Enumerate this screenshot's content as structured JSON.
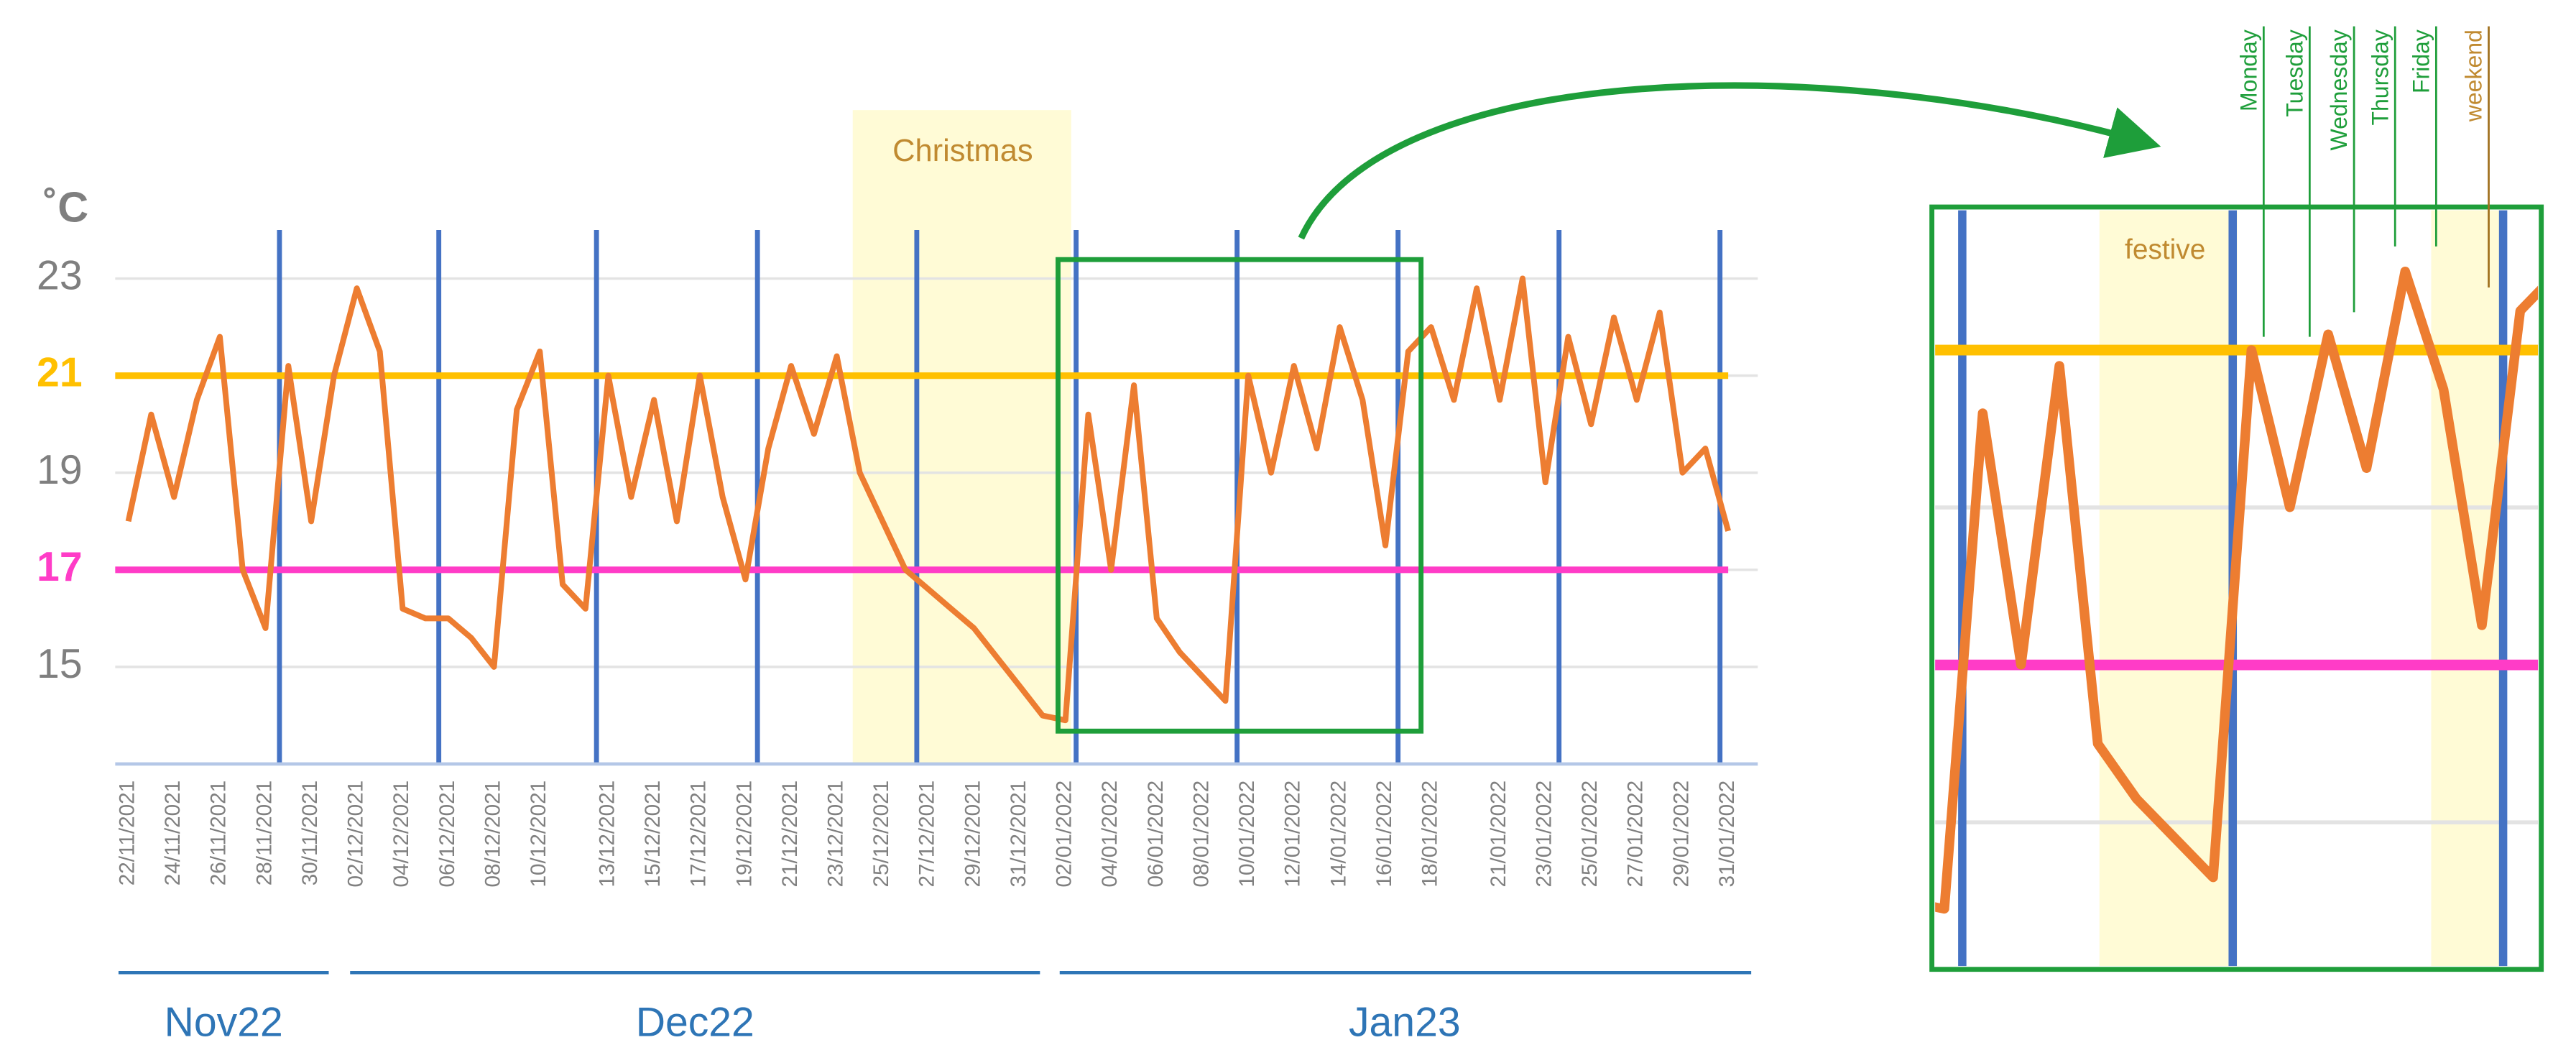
{
  "chart_data": {
    "type": "line",
    "unit": "˚C",
    "ylim": [
      13,
      24
    ],
    "yticks": [
      15,
      17,
      19,
      21,
      23
    ],
    "reference_lines": [
      {
        "value": 21,
        "color": "#ffc000"
      },
      {
        "value": 17,
        "color": "#ff3cc7"
      }
    ],
    "grid": true,
    "categories": [
      "22/11/2021",
      null,
      "24/11/2021",
      null,
      "26/11/2021",
      null,
      "28/11/2021",
      null,
      "30/11/2021",
      null,
      "02/12/2021",
      null,
      "04/12/2021",
      null,
      "06/12/2021",
      null,
      "08/12/2021",
      null,
      "10/12/2021",
      null,
      null,
      "13/12/2021",
      null,
      "15/12/2021",
      null,
      "17/12/2021",
      null,
      "19/12/2021",
      null,
      "21/12/2021",
      null,
      "23/12/2021",
      null,
      "25/12/2021",
      null,
      "27/12/2021",
      null,
      "29/12/2021",
      null,
      "31/12/2021",
      null,
      "02/01/2022",
      null,
      "04/01/2022",
      null,
      "06/01/2022",
      null,
      "08/01/2022",
      null,
      "10/01/2022",
      null,
      "12/01/2022",
      null,
      "14/01/2022",
      null,
      "16/01/2022",
      null,
      "18/01/2022",
      null,
      null,
      "21/01/2022",
      null,
      "23/01/2022",
      null,
      "25/01/2022",
      null,
      "27/01/2022",
      null,
      "29/01/2022",
      null,
      "31/01/2022"
    ],
    "series": [
      {
        "color": "#ed7d31",
        "values": [
          18,
          20.2,
          18.5,
          20.5,
          21.8,
          17,
          15.8,
          21.2,
          18,
          21,
          22.8,
          21.5,
          16.2,
          16,
          16,
          15.6,
          15,
          20.3,
          21.5,
          16.7,
          16.2,
          21,
          18.5,
          20.5,
          18,
          21,
          18.5,
          16.8,
          19.5,
          21.2,
          19.8,
          21.4,
          19,
          18,
          17,
          16.6,
          16.2,
          15.8,
          15.2,
          14.6,
          14,
          13.9,
          20.2,
          17,
          20.8,
          16,
          15.3,
          14.8,
          14.3,
          21,
          19,
          21.2,
          19.5,
          22,
          20.5,
          17.5,
          21.5,
          22,
          20.5,
          22.8,
          20.5,
          23,
          18.8,
          21.8,
          20,
          22.2,
          20.5,
          22.3,
          19,
          19.5,
          17.8
        ]
      }
    ],
    "annotations": {
      "christmas": "Christmas",
      "festive": "festive"
    },
    "periods": [
      "Nov22",
      "Dec22",
      "Jan23"
    ],
    "weekdays": [
      "Monday",
      "Tuesday",
      "Wednesday",
      "Thursday",
      "Friday"
    ],
    "weekend": "weekend"
  }
}
